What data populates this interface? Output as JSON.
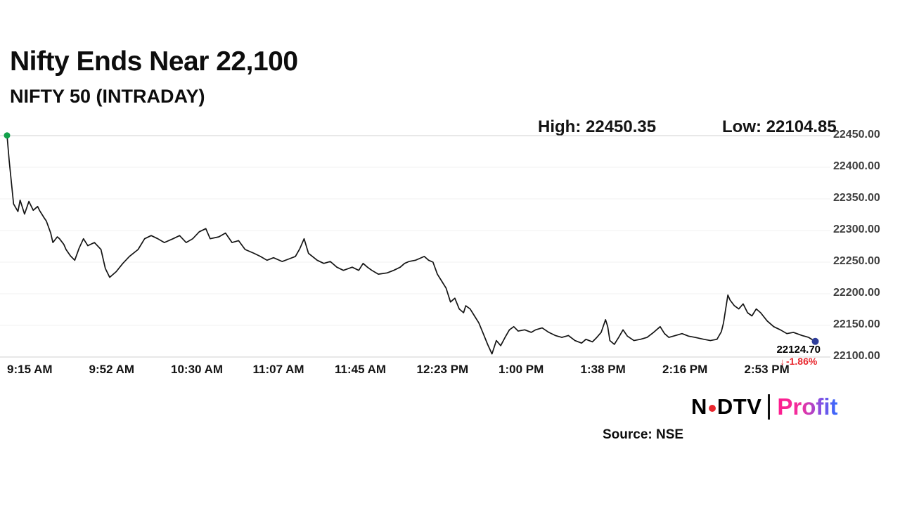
{
  "header": {
    "title": "Nifty Ends Near 22,100",
    "subtitle": "NIFTY 50 (INTRADAY)",
    "high_label": "High: 22450.35",
    "low_label": "Low: 22104.85"
  },
  "last_label": {
    "price": "22124.70",
    "arrow": "↓",
    "pct": "-1.86%"
  },
  "footer": {
    "source": "Source: NSE",
    "logo": {
      "ndtv_left": "N",
      "ndtv_right": "DTV",
      "profit": "Profit"
    }
  },
  "colors": {
    "line": "#141414",
    "start_dot": "#12a14b",
    "end_dot": "#2e3d9a",
    "negative": "#e8262d",
    "grid_major": "#d2d2d2",
    "grid_minor": "#f0f0f0"
  },
  "chart_data": {
    "type": "line",
    "title": "NIFTY 50 (INTRADAY)",
    "high": 22450.35,
    "low": 22104.85,
    "close": 22124.7,
    "change_pct": -1.86,
    "ylim": [
      22100,
      22450
    ],
    "xlim_minutes": [
      0,
      375
    ],
    "grid": "horizontal",
    "legend": "none",
    "y_ticks": [
      {
        "value": 22450,
        "label": "22450.00"
      },
      {
        "value": 22400,
        "label": "22400.00"
      },
      {
        "value": 22350,
        "label": "22350.00"
      },
      {
        "value": 22300,
        "label": "22300.00"
      },
      {
        "value": 22250,
        "label": "22250.00"
      },
      {
        "value": 22200,
        "label": "22200.00"
      },
      {
        "value": 22150,
        "label": "22150.00"
      },
      {
        "value": 22100,
        "label": "22100.00"
      }
    ],
    "x_ticks": [
      {
        "minute": 0,
        "label": "9:15 AM"
      },
      {
        "minute": 37.5,
        "label": "9:52 AM"
      },
      {
        "minute": 75,
        "label": "10:30 AM"
      },
      {
        "minute": 112.5,
        "label": "11:07 AM"
      },
      {
        "minute": 150,
        "label": "11:45 AM"
      },
      {
        "minute": 187.5,
        "label": "12:23 PM"
      },
      {
        "minute": 225,
        "label": "1:00 PM"
      },
      {
        "minute": 262.5,
        "label": "1:38 PM"
      },
      {
        "minute": 300,
        "label": "2:16 PM"
      },
      {
        "minute": 337.5,
        "label": "2:53 PM"
      }
    ],
    "points": [
      [
        0,
        22450.35
      ],
      [
        1,
        22410
      ],
      [
        3,
        22342
      ],
      [
        5,
        22330
      ],
      [
        6,
        22348
      ],
      [
        8,
        22326
      ],
      [
        10,
        22346
      ],
      [
        12,
        22332
      ],
      [
        14,
        22338
      ],
      [
        15,
        22331
      ],
      [
        17,
        22320
      ],
      [
        18,
        22315
      ],
      [
        20,
        22296
      ],
      [
        21,
        22281
      ],
      [
        23,
        22290
      ],
      [
        24,
        22287
      ],
      [
        26,
        22278
      ],
      [
        27,
        22270
      ],
      [
        29,
        22260
      ],
      [
        31,
        22253
      ],
      [
        33,
        22272
      ],
      [
        35,
        22287
      ],
      [
        37,
        22276
      ],
      [
        40,
        22281
      ],
      [
        43,
        22270
      ],
      [
        45,
        22240
      ],
      [
        47,
        22226
      ],
      [
        50,
        22235
      ],
      [
        53,
        22248
      ],
      [
        56,
        22259
      ],
      [
        60,
        22270
      ],
      [
        63,
        22287
      ],
      [
        66,
        22292
      ],
      [
        69,
        22287
      ],
      [
        72,
        22281
      ],
      [
        76,
        22287
      ],
      [
        79,
        22292
      ],
      [
        82,
        22281
      ],
      [
        85,
        22287
      ],
      [
        88,
        22298
      ],
      [
        91,
        22303
      ],
      [
        93,
        22287
      ],
      [
        97,
        22290
      ],
      [
        100,
        22296
      ],
      [
        103,
        22281
      ],
      [
        106,
        22284
      ],
      [
        109,
        22270
      ],
      [
        113,
        22264
      ],
      [
        116,
        22259
      ],
      [
        119,
        22253
      ],
      [
        122,
        22257
      ],
      [
        126,
        22251
      ],
      [
        129,
        22255
      ],
      [
        132,
        22259
      ],
      [
        134,
        22271
      ],
      [
        136,
        22287
      ],
      [
        138,
        22264
      ],
      [
        142,
        22253
      ],
      [
        145,
        22248
      ],
      [
        148,
        22251
      ],
      [
        151,
        22242
      ],
      [
        154,
        22237
      ],
      [
        158,
        22242
      ],
      [
        161,
        22237
      ],
      [
        163,
        22248
      ],
      [
        165,
        22242
      ],
      [
        167,
        22237
      ],
      [
        170,
        22231
      ],
      [
        174,
        22233
      ],
      [
        177,
        22237
      ],
      [
        180,
        22242
      ],
      [
        182,
        22248
      ],
      [
        184,
        22251
      ],
      [
        187,
        22253
      ],
      [
        189,
        22256
      ],
      [
        191,
        22259
      ],
      [
        193,
        22253
      ],
      [
        195,
        22250
      ],
      [
        197,
        22231
      ],
      [
        199,
        22220
      ],
      [
        201,
        22209
      ],
      [
        203,
        22187
      ],
      [
        205,
        22193
      ],
      [
        207,
        22176
      ],
      [
        209,
        22170
      ],
      [
        210,
        22181
      ],
      [
        212,
        22176
      ],
      [
        214,
        22165
      ],
      [
        216,
        22154
      ],
      [
        218,
        22137
      ],
      [
        220,
        22120
      ],
      [
        222,
        22104.85
      ],
      [
        224,
        22126
      ],
      [
        226,
        22118
      ],
      [
        228,
        22131
      ],
      [
        230,
        22143
      ],
      [
        232,
        22148
      ],
      [
        234,
        22141
      ],
      [
        237,
        22143
      ],
      [
        240,
        22139
      ],
      [
        242,
        22143
      ],
      [
        245,
        22146
      ],
      [
        248,
        22139
      ],
      [
        251,
        22134
      ],
      [
        254,
        22131
      ],
      [
        257,
        22134
      ],
      [
        260,
        22126
      ],
      [
        263,
        22122
      ],
      [
        265,
        22128
      ],
      [
        268,
        22124
      ],
      [
        270,
        22131
      ],
      [
        272,
        22139
      ],
      [
        274,
        22159
      ],
      [
        275,
        22148
      ],
      [
        276,
        22126
      ],
      [
        278,
        22120
      ],
      [
        280,
        22131
      ],
      [
        282,
        22143
      ],
      [
        284,
        22133
      ],
      [
        287,
        22126
      ],
      [
        290,
        22128
      ],
      [
        293,
        22131
      ],
      [
        296,
        22139
      ],
      [
        299,
        22148
      ],
      [
        301,
        22137
      ],
      [
        303,
        22131
      ],
      [
        306,
        22134
      ],
      [
        309,
        22137
      ],
      [
        312,
        22133
      ],
      [
        315,
        22131
      ],
      [
        319,
        22128
      ],
      [
        322,
        22126
      ],
      [
        325,
        22128
      ],
      [
        327,
        22140
      ],
      [
        328,
        22154
      ],
      [
        330,
        22198
      ],
      [
        331,
        22190
      ],
      [
        333,
        22181
      ],
      [
        335,
        22176
      ],
      [
        337,
        22184
      ],
      [
        339,
        22170
      ],
      [
        341,
        22165
      ],
      [
        343,
        22176
      ],
      [
        345,
        22170
      ],
      [
        348,
        22157
      ],
      [
        351,
        22148
      ],
      [
        354,
        22143
      ],
      [
        357,
        22137
      ],
      [
        360,
        22139
      ],
      [
        364,
        22134
      ],
      [
        367,
        22131
      ],
      [
        370,
        22124.7
      ]
    ]
  }
}
